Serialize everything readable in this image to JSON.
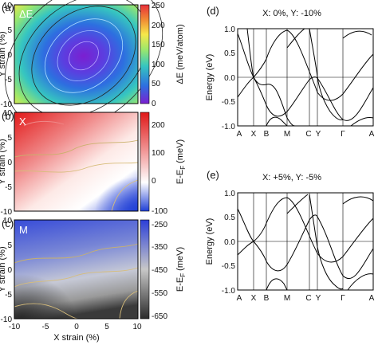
{
  "chart_data": [
    {
      "type": "heatmap",
      "panel_label": "(a)",
      "inset_label": "ΔE",
      "xlabel": "",
      "ylabel": "Y strain (%)",
      "xlim": [
        -10,
        10
      ],
      "ylim": [
        -10,
        10
      ],
      "yticks": [
        "10",
        "5",
        "0",
        "-5",
        "-10"
      ],
      "colorbar_label": "ΔE (meV/atom)",
      "colorbar_range": [
        0,
        250
      ],
      "colorbar_ticks": [
        "250",
        "200",
        "150",
        "100",
        "50",
        "0"
      ],
      "colormap": [
        "#7b1fd1",
        "#2d6fe0",
        "#36c6c0",
        "#9ee86a",
        "#f6e84a",
        "#f08a34",
        "#e8303a"
      ],
      "minimum_at": [
        0,
        0
      ]
    },
    {
      "type": "heatmap",
      "panel_label": "(b)",
      "inset_label": "X",
      "xlabel": "",
      "ylabel": "Y strain (%)",
      "xlim": [
        -10,
        10
      ],
      "ylim": [
        -10,
        10
      ],
      "yticks": [
        "10",
        "5",
        "0",
        "-5",
        "-10"
      ],
      "colorbar_label": "E-E_F (meV)",
      "colorbar_range": [
        -100,
        250
      ],
      "colorbar_ticks": [
        "200",
        "100",
        "0",
        "-100"
      ],
      "colormap": [
        "#1f3fd6",
        "#ffffff",
        "#e01818"
      ]
    },
    {
      "type": "heatmap",
      "panel_label": "(c)",
      "inset_label": "M",
      "xlabel": "X strain (%)",
      "ylabel": "Y strain (%)",
      "xlim": [
        -10,
        10
      ],
      "ylim": [
        -10,
        10
      ],
      "xticks": [
        "-10",
        "-5",
        "0",
        "5",
        "10"
      ],
      "yticks": [
        "10",
        "5",
        "0",
        "-5",
        "-10"
      ],
      "colorbar_label": "E-E_F (meV)",
      "colorbar_range": [
        -650,
        -250
      ],
      "colorbar_ticks": [
        "-250",
        "-350",
        "-450",
        "-550",
        "-650"
      ],
      "colormap": [
        "#2a2a2a",
        "#c8c8c8",
        "#2c3fd8"
      ]
    },
    {
      "type": "line",
      "panel_label": "(d)",
      "title": "X: 0%, Y: -10%",
      "ylabel": "Energy (eV)",
      "ylim": [
        -1.0,
        1.0
      ],
      "yticks": [
        "1.0",
        "0.5",
        "0.0",
        "-0.5",
        "-1.0"
      ],
      "kpath": [
        "A",
        "X",
        "B",
        "M",
        "C",
        "Y",
        "Γ",
        "A"
      ]
    },
    {
      "type": "line",
      "panel_label": "(e)",
      "title": "X: +5%, Y: -5%",
      "ylabel": "Energy (eV)",
      "ylim": [
        -1.0,
        1.0
      ],
      "yticks": [
        "1.0",
        "0.5",
        "0.0",
        "-0.5",
        "-1.0"
      ],
      "kpath": [
        "A",
        "X",
        "B",
        "M",
        "C",
        "Y",
        "Γ",
        "A"
      ]
    }
  ]
}
